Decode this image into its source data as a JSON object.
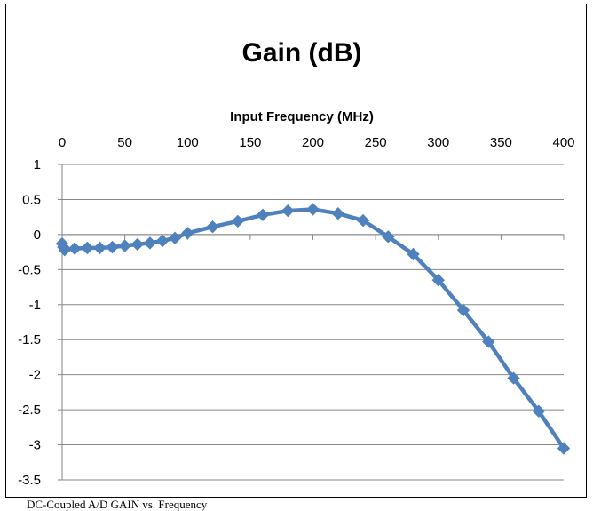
{
  "chart_data": {
    "type": "line",
    "title": "Gain (dB)",
    "xlabel": "Input Frequency (MHz)",
    "ylabel": "",
    "x_axis_position": "top",
    "xlim": [
      0,
      400
    ],
    "ylim": [
      -3.5,
      1
    ],
    "x_ticks": [
      0,
      50,
      100,
      150,
      200,
      250,
      300,
      350,
      400
    ],
    "y_ticks": [
      1,
      0.5,
      0,
      -0.5,
      -1,
      -1.5,
      -2,
      -2.5,
      -3,
      -3.5
    ],
    "grid": true,
    "legend": "none",
    "series": [
      {
        "color": "#4f81bd",
        "marker": "diamond",
        "x": [
          0,
          1,
          2,
          10,
          20,
          30,
          40,
          50,
          60,
          70,
          80,
          90,
          100,
          120,
          140,
          160,
          180,
          200,
          220,
          240,
          260,
          280,
          300,
          320,
          340,
          360,
          380,
          400
        ],
        "y": [
          -0.13,
          -0.18,
          -0.22,
          -0.2,
          -0.19,
          -0.19,
          -0.18,
          -0.16,
          -0.14,
          -0.12,
          -0.09,
          -0.05,
          0.02,
          0.11,
          0.19,
          0.28,
          0.34,
          0.36,
          0.3,
          0.2,
          -0.03,
          -0.28,
          -0.65,
          -1.08,
          -1.53,
          -2.05,
          -2.52,
          -3.05
        ]
      }
    ]
  },
  "caption": "DC-Coupled A/D GAIN vs. Frequency"
}
